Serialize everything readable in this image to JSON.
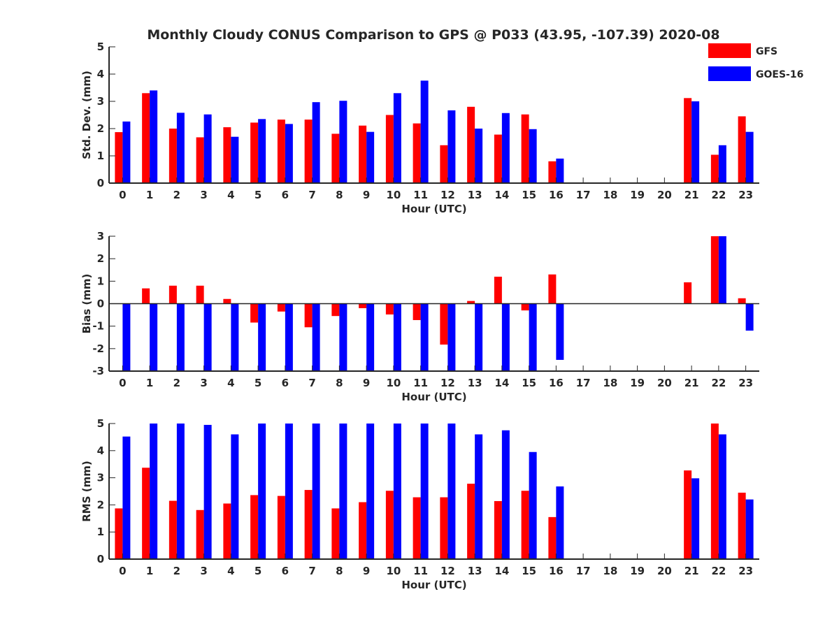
{
  "title": "Monthly Cloudy CONUS Comparison to GPS @ P033 (43.95, -107.39) 2020-08",
  "legend": {
    "placement": "top-right",
    "entries": [
      {
        "name": "GFS",
        "color": "#ff0000"
      },
      {
        "name": "GOES-16",
        "color": "#0000ff"
      }
    ]
  },
  "chart_data": [
    {
      "type": "bar",
      "xlabel": "Hour (UTC)",
      "ylabel": "Std. Dev. (mm)",
      "ylim": [
        0,
        5
      ],
      "yticks": [
        "0",
        "1",
        "2",
        "3",
        "4",
        "5"
      ],
      "categories": [
        "0",
        "1",
        "2",
        "3",
        "4",
        "5",
        "6",
        "7",
        "8",
        "9",
        "10",
        "11",
        "12",
        "13",
        "14",
        "15",
        "16",
        "17",
        "18",
        "19",
        "20",
        "21",
        "22",
        "23"
      ],
      "series": [
        {
          "name": "GFS",
          "color": "#ff0000",
          "values": [
            1.87,
            3.3,
            2.0,
            1.68,
            2.05,
            2.22,
            2.33,
            2.33,
            1.81,
            2.11,
            2.5,
            2.19,
            1.39,
            2.8,
            1.78,
            2.52,
            0.8,
            null,
            null,
            null,
            null,
            3.12,
            1.04,
            2.45
          ]
        },
        {
          "name": "GOES-16",
          "color": "#0000ff",
          "values": [
            2.26,
            3.4,
            2.58,
            2.52,
            1.7,
            2.35,
            2.17,
            2.97,
            3.02,
            1.88,
            3.3,
            3.76,
            2.67,
            2.0,
            2.57,
            1.98,
            0.9,
            null,
            null,
            null,
            null,
            3.0,
            1.39,
            1.88
          ]
        }
      ]
    },
    {
      "type": "bar",
      "xlabel": "Hour (UTC)",
      "ylabel": "Bias (mm)",
      "ylim": [
        -3,
        3
      ],
      "yticks": [
        "-3",
        "-2",
        "-1",
        "0",
        "1",
        "2",
        "3"
      ],
      "categories": [
        "0",
        "1",
        "2",
        "3",
        "4",
        "5",
        "6",
        "7",
        "8",
        "9",
        "10",
        "11",
        "12",
        "13",
        "14",
        "15",
        "16",
        "17",
        "18",
        "19",
        "20",
        "21",
        "22",
        "23"
      ],
      "series": [
        {
          "name": "GFS",
          "color": "#ff0000",
          "values": [
            0.0,
            0.68,
            0.8,
            0.8,
            0.21,
            -0.84,
            -0.35,
            -1.05,
            -0.55,
            -0.2,
            -0.48,
            -0.73,
            -1.82,
            0.12,
            1.2,
            -0.3,
            1.3,
            null,
            null,
            null,
            null,
            0.95,
            3.0,
            0.24
          ]
        },
        {
          "name": "GOES-16",
          "color": "#0000ff",
          "values": [
            -3.0,
            -3.0,
            -3.0,
            -3.0,
            -3.0,
            -3.0,
            -3.0,
            -3.0,
            -3.0,
            -3.0,
            -3.0,
            -3.0,
            -3.0,
            -3.0,
            -3.0,
            -3.0,
            -2.5,
            null,
            null,
            null,
            null,
            0.0,
            3.0,
            -1.2
          ]
        }
      ]
    },
    {
      "type": "bar",
      "xlabel": "Hour (UTC)",
      "ylabel": "RMS (mm)",
      "ylim": [
        0,
        5
      ],
      "yticks": [
        "0",
        "1",
        "2",
        "3",
        "4",
        "5"
      ],
      "categories": [
        "0",
        "1",
        "2",
        "3",
        "4",
        "5",
        "6",
        "7",
        "8",
        "9",
        "10",
        "11",
        "12",
        "13",
        "14",
        "15",
        "16",
        "17",
        "18",
        "19",
        "20",
        "21",
        "22",
        "23"
      ],
      "series": [
        {
          "name": "GFS",
          "color": "#ff0000",
          "values": [
            1.87,
            3.37,
            2.15,
            1.81,
            2.05,
            2.36,
            2.33,
            2.55,
            1.87,
            2.1,
            2.52,
            2.28,
            2.28,
            2.78,
            2.14,
            2.52,
            1.55,
            null,
            null,
            null,
            null,
            3.27,
            5.0,
            2.45
          ]
        },
        {
          "name": "GOES-16",
          "color": "#0000ff",
          "values": [
            4.52,
            5.0,
            5.0,
            4.95,
            4.6,
            5.0,
            5.0,
            5.0,
            5.0,
            5.0,
            5.0,
            5.0,
            5.0,
            4.6,
            4.75,
            3.95,
            2.68,
            null,
            null,
            null,
            null,
            2.98,
            4.6,
            2.2
          ]
        }
      ]
    }
  ]
}
